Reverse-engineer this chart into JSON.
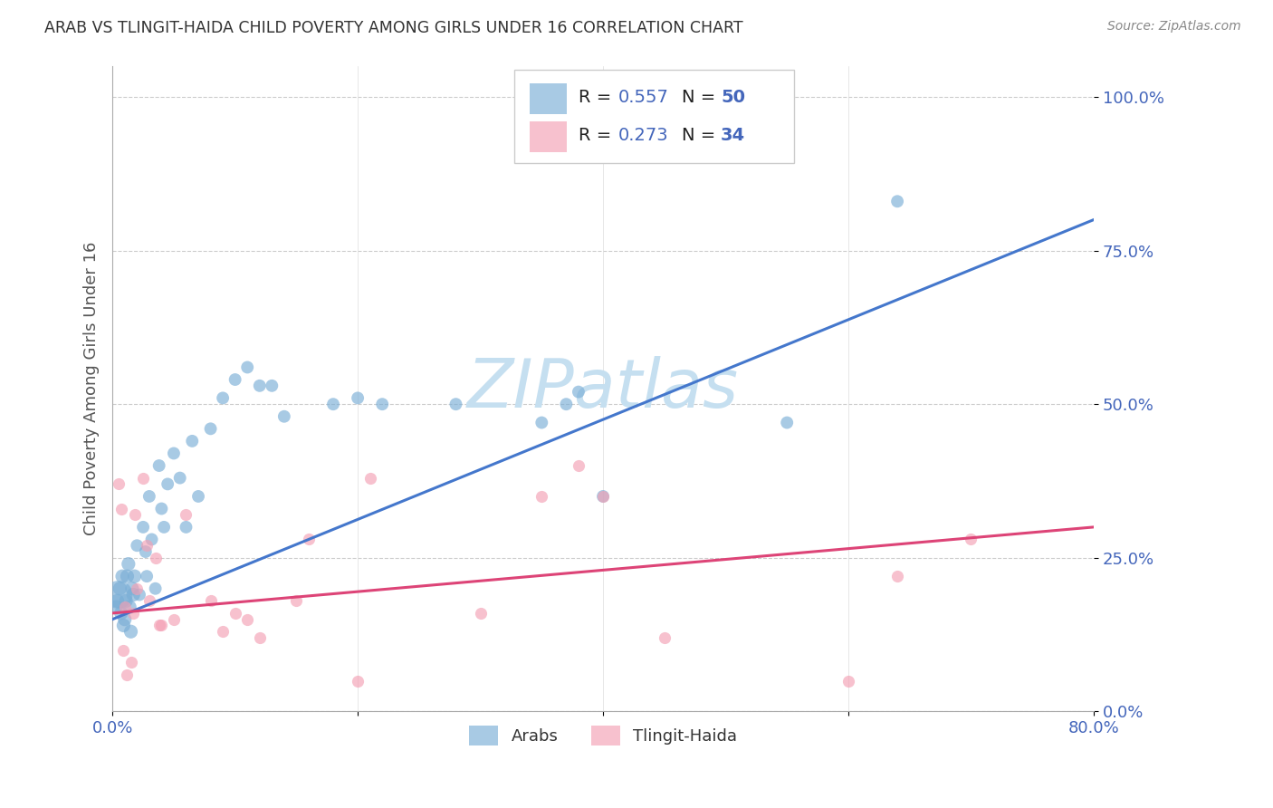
{
  "title": "ARAB VS TLINGIT-HAIDA CHILD POVERTY AMONG GIRLS UNDER 16 CORRELATION CHART",
  "source": "Source: ZipAtlas.com",
  "ylabel": "Child Poverty Among Girls Under 16",
  "arab_R": 0.557,
  "arab_N": 50,
  "tlingit_R": 0.273,
  "tlingit_N": 34,
  "arab_color": "#7aaed6",
  "arab_line_color": "#4477cc",
  "tlingit_color": "#f4a0b4",
  "tlingit_line_color": "#dd4477",
  "watermark": "ZIPatlas",
  "watermark_color": "#c5dff0",
  "legend_label_arab": "Arabs",
  "legend_label_tlingit": "Tlingit-Haida",
  "xmin": 0.0,
  "xmax": 0.8,
  "ymin": 0.0,
  "ymax": 1.05,
  "ytick_values": [
    0.0,
    0.25,
    0.5,
    0.75,
    1.0
  ],
  "ytick_labels": [
    "0.0%",
    "25.0%",
    "50.0%",
    "75.0%",
    "100.0%"
  ],
  "arab_trend_x": [
    0.0,
    0.8
  ],
  "arab_trend_y": [
    0.15,
    0.8
  ],
  "tlingit_trend_x": [
    0.0,
    0.8
  ],
  "tlingit_trend_y": [
    0.16,
    0.3
  ],
  "arab_x": [
    0.003,
    0.004,
    0.005,
    0.006,
    0.007,
    0.008,
    0.009,
    0.01,
    0.011,
    0.012,
    0.013,
    0.014,
    0.015,
    0.016,
    0.017,
    0.018,
    0.02,
    0.022,
    0.025,
    0.027,
    0.028,
    0.03,
    0.032,
    0.035,
    0.038,
    0.04,
    0.042,
    0.045,
    0.05,
    0.055,
    0.06,
    0.065,
    0.07,
    0.08,
    0.09,
    0.1,
    0.11,
    0.12,
    0.13,
    0.14,
    0.18,
    0.2,
    0.22,
    0.28,
    0.35,
    0.37,
    0.38,
    0.4,
    0.55,
    0.64
  ],
  "arab_y": [
    0.17,
    0.18,
    0.19,
    0.2,
    0.16,
    0.22,
    0.14,
    0.15,
    0.18,
    0.22,
    0.24,
    0.17,
    0.13,
    0.2,
    0.19,
    0.22,
    0.27,
    0.19,
    0.3,
    0.26,
    0.22,
    0.35,
    0.28,
    0.2,
    0.4,
    0.33,
    0.3,
    0.37,
    0.42,
    0.38,
    0.3,
    0.44,
    0.35,
    0.46,
    0.51,
    0.54,
    0.56,
    0.53,
    0.53,
    0.48,
    0.5,
    0.51,
    0.5,
    0.5,
    0.47,
    0.5,
    0.52,
    0.35,
    0.47,
    0.83
  ],
  "arab_sizes": [
    120,
    120,
    500,
    120,
    120,
    120,
    120,
    120,
    120,
    120,
    120,
    120,
    120,
    120,
    120,
    120,
    100,
    100,
    100,
    100,
    100,
    100,
    100,
    100,
    100,
    100,
    100,
    100,
    100,
    100,
    100,
    100,
    100,
    100,
    100,
    100,
    100,
    100,
    100,
    100,
    100,
    100,
    100,
    100,
    100,
    100,
    100,
    100,
    100,
    100
  ],
  "tlingit_x": [
    0.005,
    0.007,
    0.009,
    0.01,
    0.012,
    0.015,
    0.017,
    0.018,
    0.02,
    0.025,
    0.028,
    0.03,
    0.035,
    0.038,
    0.04,
    0.05,
    0.06,
    0.08,
    0.09,
    0.1,
    0.11,
    0.12,
    0.15,
    0.16,
    0.2,
    0.21,
    0.3,
    0.35,
    0.38,
    0.4,
    0.45,
    0.6,
    0.64,
    0.7
  ],
  "tlingit_y": [
    0.37,
    0.33,
    0.1,
    0.17,
    0.06,
    0.08,
    0.16,
    0.32,
    0.2,
    0.38,
    0.27,
    0.18,
    0.25,
    0.14,
    0.14,
    0.15,
    0.32,
    0.18,
    0.13,
    0.16,
    0.15,
    0.12,
    0.18,
    0.28,
    0.05,
    0.38,
    0.16,
    0.35,
    0.4,
    0.35,
    0.12,
    0.05,
    0.22,
    0.28
  ]
}
